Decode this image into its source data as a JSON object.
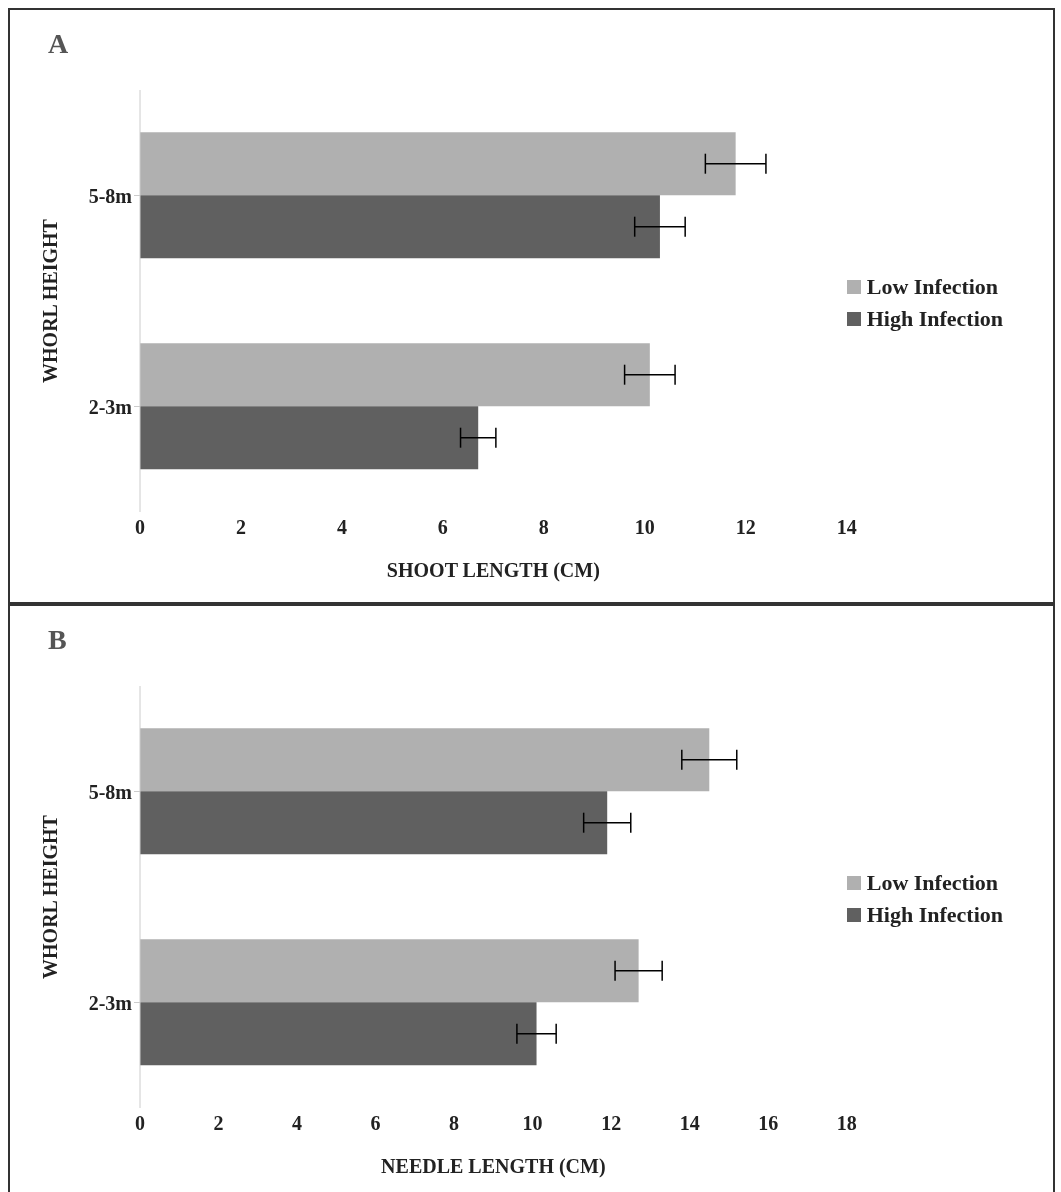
{
  "chart_data": [
    {
      "type": "bar",
      "title": "A",
      "orientation": "horizontal",
      "categories": [
        "5-8m",
        "2-3m"
      ],
      "xlabel": "SHOOT LENGTH (CM)",
      "ylabel": "WHORL HEIGHT",
      "series": [
        {
          "name": "Low Infection",
          "color": "#b0b0b0",
          "values": [
            11.8,
            10.1
          ],
          "errors": [
            0.6,
            0.5
          ]
        },
        {
          "name": "High Infection",
          "color": "#606060",
          "values": [
            10.3,
            6.7
          ],
          "errors": [
            0.5,
            0.35
          ]
        }
      ],
      "xlim": [
        0,
        14
      ],
      "xticks": [
        0,
        2,
        4,
        6,
        8,
        10,
        12,
        14
      ],
      "grid": false,
      "legend": "right"
    },
    {
      "type": "bar",
      "title": "B",
      "orientation": "horizontal",
      "categories": [
        "5-8m",
        "2-3m"
      ],
      "xlabel": "NEEDLE LENGTH (CM)",
      "ylabel": "WHORL HEIGHT",
      "series": [
        {
          "name": "Low Infection",
          "color": "#b0b0b0",
          "values": [
            14.5,
            12.7
          ],
          "errors": [
            0.7,
            0.6
          ]
        },
        {
          "name": "High Infection",
          "color": "#606060",
          "values": [
            11.9,
            10.1
          ],
          "errors": [
            0.6,
            0.5
          ]
        }
      ],
      "xlim": [
        0,
        18
      ],
      "xticks": [
        0,
        2,
        4,
        6,
        8,
        10,
        12,
        14,
        16,
        18
      ],
      "grid": false,
      "legend": "right"
    }
  ]
}
